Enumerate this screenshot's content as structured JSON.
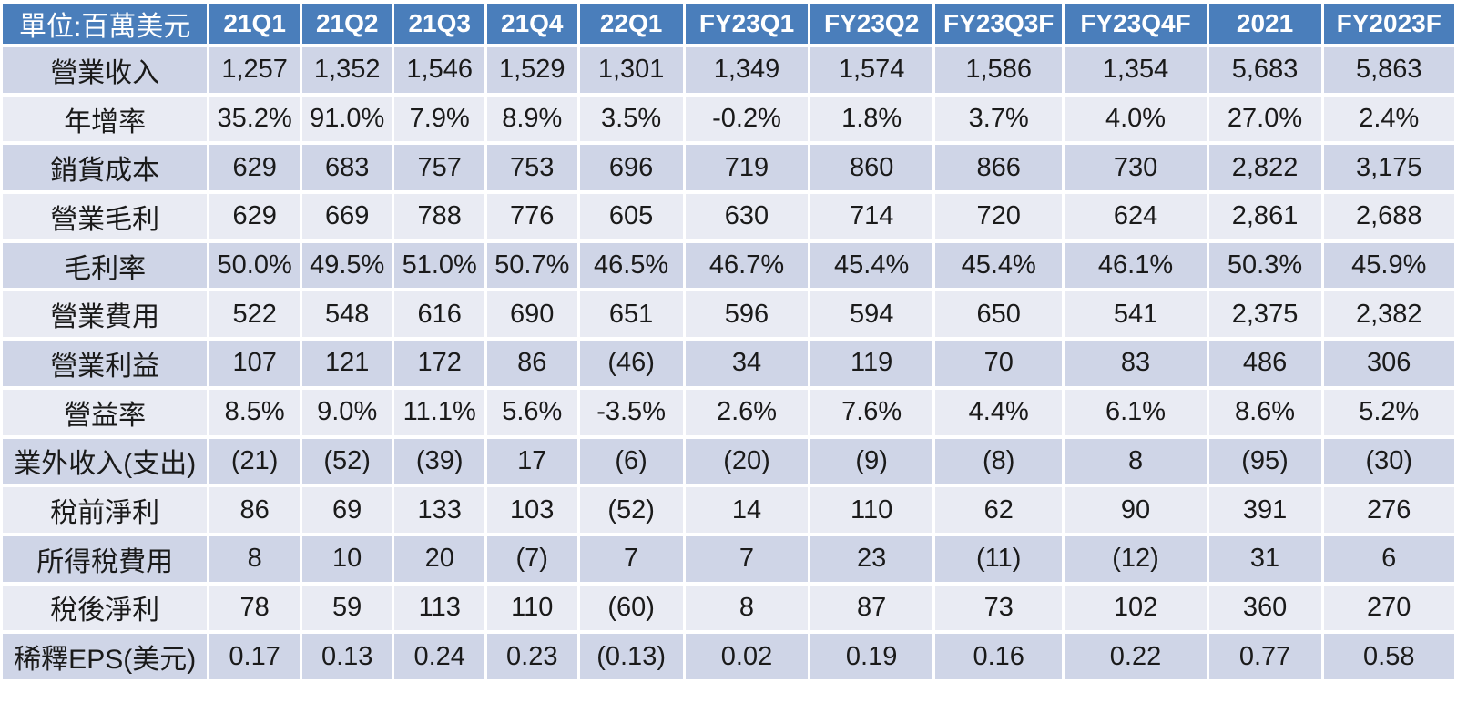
{
  "colors": {
    "header_bg": "#4a7ebb",
    "header_fg": "#ffffff",
    "band_dark": "#cfd5e7",
    "band_light": "#e9ebf3",
    "text": "#1a1a1a",
    "gridline": "#ffffff"
  },
  "chart_data": {
    "type": "table",
    "unit_label": "單位:百萬美元",
    "columns": [
      "21Q1",
      "21Q2",
      "21Q3",
      "21Q4",
      "22Q1",
      "FY23Q1",
      "FY23Q2",
      "FY23Q3F",
      "FY23Q4F",
      "2021",
      "FY2023F"
    ],
    "rows": [
      {
        "label": "營業收入",
        "values": [
          "1,257",
          "1,352",
          "1,546",
          "1,529",
          "1,301",
          "1,349",
          "1,574",
          "1,586",
          "1,354",
          "5,683",
          "5,863"
        ]
      },
      {
        "label": "年增率",
        "values": [
          "35.2%",
          "91.0%",
          "7.9%",
          "8.9%",
          "3.5%",
          "-0.2%",
          "1.8%",
          "3.7%",
          "4.0%",
          "27.0%",
          "2.4%"
        ]
      },
      {
        "label": "銷貨成本",
        "values": [
          "629",
          "683",
          "757",
          "753",
          "696",
          "719",
          "860",
          "866",
          "730",
          "2,822",
          "3,175"
        ]
      },
      {
        "label": "營業毛利",
        "values": [
          "629",
          "669",
          "788",
          "776",
          "605",
          "630",
          "714",
          "720",
          "624",
          "2,861",
          "2,688"
        ]
      },
      {
        "label": "毛利率",
        "values": [
          "50.0%",
          "49.5%",
          "51.0%",
          "50.7%",
          "46.5%",
          "46.7%",
          "45.4%",
          "45.4%",
          "46.1%",
          "50.3%",
          "45.9%"
        ]
      },
      {
        "label": "營業費用",
        "values": [
          "522",
          "548",
          "616",
          "690",
          "651",
          "596",
          "594",
          "650",
          "541",
          "2,375",
          "2,382"
        ]
      },
      {
        "label": "營業利益",
        "values": [
          "107",
          "121",
          "172",
          "86",
          "(46)",
          "34",
          "119",
          "70",
          "83",
          "486",
          "306"
        ]
      },
      {
        "label": "營益率",
        "values": [
          "8.5%",
          "9.0%",
          "11.1%",
          "5.6%",
          "-3.5%",
          "2.6%",
          "7.6%",
          "4.4%",
          "6.1%",
          "8.6%",
          "5.2%"
        ]
      },
      {
        "label": "業外收入(支出)",
        "values": [
          "(21)",
          "(52)",
          "(39)",
          "17",
          "(6)",
          "(20)",
          "(9)",
          "(8)",
          "8",
          "(95)",
          "(30)"
        ]
      },
      {
        "label": "稅前淨利",
        "values": [
          "86",
          "69",
          "133",
          "103",
          "(52)",
          "14",
          "110",
          "62",
          "90",
          "391",
          "276"
        ]
      },
      {
        "label": "所得稅費用",
        "values": [
          "8",
          "10",
          "20",
          "(7)",
          "7",
          "7",
          "23",
          "(11)",
          "(12)",
          "31",
          "6"
        ]
      },
      {
        "label": "稅後淨利",
        "values": [
          "78",
          "59",
          "113",
          "110",
          "(60)",
          "8",
          "87",
          "73",
          "102",
          "360",
          "270"
        ]
      },
      {
        "label": "稀釋EPS(美元)",
        "values": [
          "0.17",
          "0.13",
          "0.24",
          "0.23",
          "(0.13)",
          "0.02",
          "0.19",
          "0.16",
          "0.22",
          "0.77",
          "0.58"
        ]
      }
    ]
  }
}
